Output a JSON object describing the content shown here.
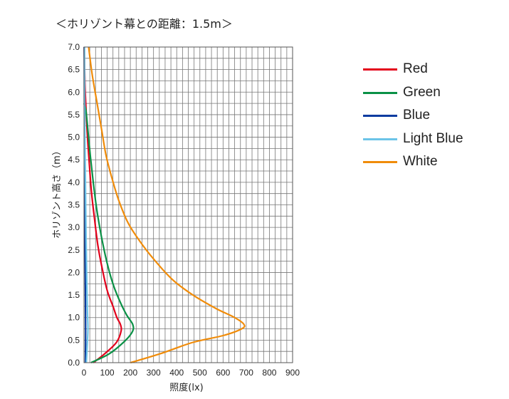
{
  "chart_data": {
    "type": "line",
    "title": "＜ホリゾント幕との距離：1.5m＞",
    "xlabel": "照度(lx)",
    "ylabel": "ホリゾント高さ（m）",
    "xlim": [
      0,
      900
    ],
    "ylim": [
      0,
      7.0
    ],
    "x_ticks": [
      "0",
      "100",
      "200",
      "300",
      "400",
      "500",
      "600",
      "700",
      "800",
      "900"
    ],
    "y_ticks": [
      "0.0",
      "0.5",
      "1.0",
      "1.5",
      "2.0",
      "2.5",
      "3.0",
      "3.5",
      "4.0",
      "4.5",
      "5.0",
      "5.5",
      "6.0",
      "6.5",
      "7.0"
    ],
    "grid": true,
    "legend_position": "right",
    "series": [
      {
        "name": "Red",
        "color": "#e3001b",
        "points": [
          [
            40,
            0
          ],
          [
            90,
            0.2
          ],
          [
            140,
            0.45
          ],
          [
            160,
            0.7
          ],
          [
            157,
            0.85
          ],
          [
            142,
            1.0
          ],
          [
            125,
            1.25
          ],
          [
            100,
            1.6
          ],
          [
            78,
            2.1
          ],
          [
            60,
            2.6
          ],
          [
            45,
            3.2
          ],
          [
            32,
            3.8
          ],
          [
            23,
            4.4
          ],
          [
            15,
            5.0
          ],
          [
            9,
            5.6
          ],
          [
            4,
            6.2
          ],
          [
            1,
            7.0
          ]
        ]
      },
      {
        "name": "Green",
        "color": "#0a9146",
        "points": [
          [
            30,
            0
          ],
          [
            110,
            0.2
          ],
          [
            180,
            0.5
          ],
          [
            210,
            0.7
          ],
          [
            210,
            0.85
          ],
          [
            185,
            1.05
          ],
          [
            160,
            1.3
          ],
          [
            128,
            1.7
          ],
          [
            100,
            2.2
          ],
          [
            75,
            2.8
          ],
          [
            55,
            3.4
          ],
          [
            40,
            4.0
          ],
          [
            27,
            4.6
          ],
          [
            16,
            5.2
          ],
          [
            8,
            5.6
          ],
          [
            0,
            5.75
          ]
        ]
      },
      {
        "name": "Blue",
        "color": "#0a3ca0",
        "points": [
          [
            6,
            0
          ],
          [
            7,
            0.7
          ],
          [
            6,
            1.5
          ],
          [
            5,
            2.5
          ],
          [
            4,
            3.5
          ],
          [
            2,
            5.0
          ],
          [
            1,
            7.0
          ]
        ]
      },
      {
        "name": "Light Blue",
        "color": "#6cc4e8",
        "points": [
          [
            10,
            0
          ],
          [
            14,
            0.4
          ],
          [
            17,
            0.75
          ],
          [
            15,
            1.1
          ],
          [
            12,
            1.8
          ],
          [
            9,
            2.8
          ],
          [
            6,
            4.0
          ],
          [
            3,
            5.5
          ],
          [
            2,
            7.0
          ]
        ]
      },
      {
        "name": "White",
        "color": "#f08c0a",
        "points": [
          [
            200,
            0
          ],
          [
            330,
            0.2
          ],
          [
            470,
            0.45
          ],
          [
            600,
            0.6
          ],
          [
            680,
            0.75
          ],
          [
            690,
            0.85
          ],
          [
            650,
            1.0
          ],
          [
            570,
            1.2
          ],
          [
            470,
            1.5
          ],
          [
            380,
            1.85
          ],
          [
            300,
            2.3
          ],
          [
            240,
            2.7
          ],
          [
            190,
            3.1
          ],
          [
            150,
            3.6
          ],
          [
            120,
            4.1
          ],
          [
            95,
            4.6
          ],
          [
            75,
            5.2
          ],
          [
            55,
            5.8
          ],
          [
            35,
            6.4
          ],
          [
            20,
            7.0
          ]
        ]
      }
    ]
  }
}
